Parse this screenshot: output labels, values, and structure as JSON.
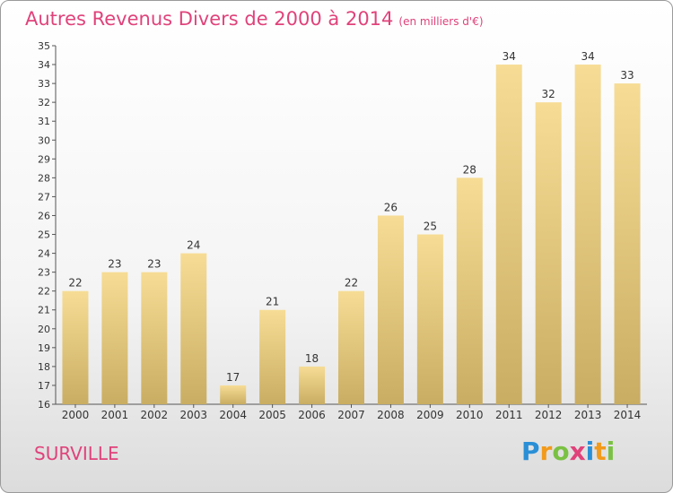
{
  "title": "Autres Revenus Divers de 2000 à 2014",
  "unit": "(en milliers d'€)",
  "commune": "SURVILLE",
  "logo": {
    "letters": [
      "P",
      "r",
      "o",
      "x",
      "i",
      "t",
      "i"
    ],
    "colors": [
      "#2a8fd6",
      "#f29a1b",
      "#7ac143",
      "#e0427a",
      "#2a8fd6",
      "#f29a1b",
      "#7ac143"
    ]
  },
  "colors": {
    "bar_top": "#f6dc95",
    "bar_bottom": "#c9ad62",
    "accent": "#e0427a"
  },
  "chart_data": {
    "type": "bar",
    "title": "Autres Revenus Divers de 2000 à 2014",
    "xlabel": "",
    "ylabel": "",
    "categories": [
      "2000",
      "2001",
      "2002",
      "2003",
      "2004",
      "2005",
      "2006",
      "2007",
      "2008",
      "2009",
      "2010",
      "2011",
      "2012",
      "2013",
      "2014"
    ],
    "values": [
      22,
      23,
      23,
      24,
      17,
      21,
      18,
      22,
      26,
      25,
      28,
      34,
      32,
      34,
      33
    ],
    "ylim": [
      16,
      35
    ],
    "yticks": [
      16,
      17,
      18,
      19,
      20,
      21,
      22,
      23,
      24,
      25,
      26,
      27,
      28,
      29,
      30,
      31,
      32,
      33,
      34,
      35
    ],
    "grid": false,
    "legend": "none"
  }
}
